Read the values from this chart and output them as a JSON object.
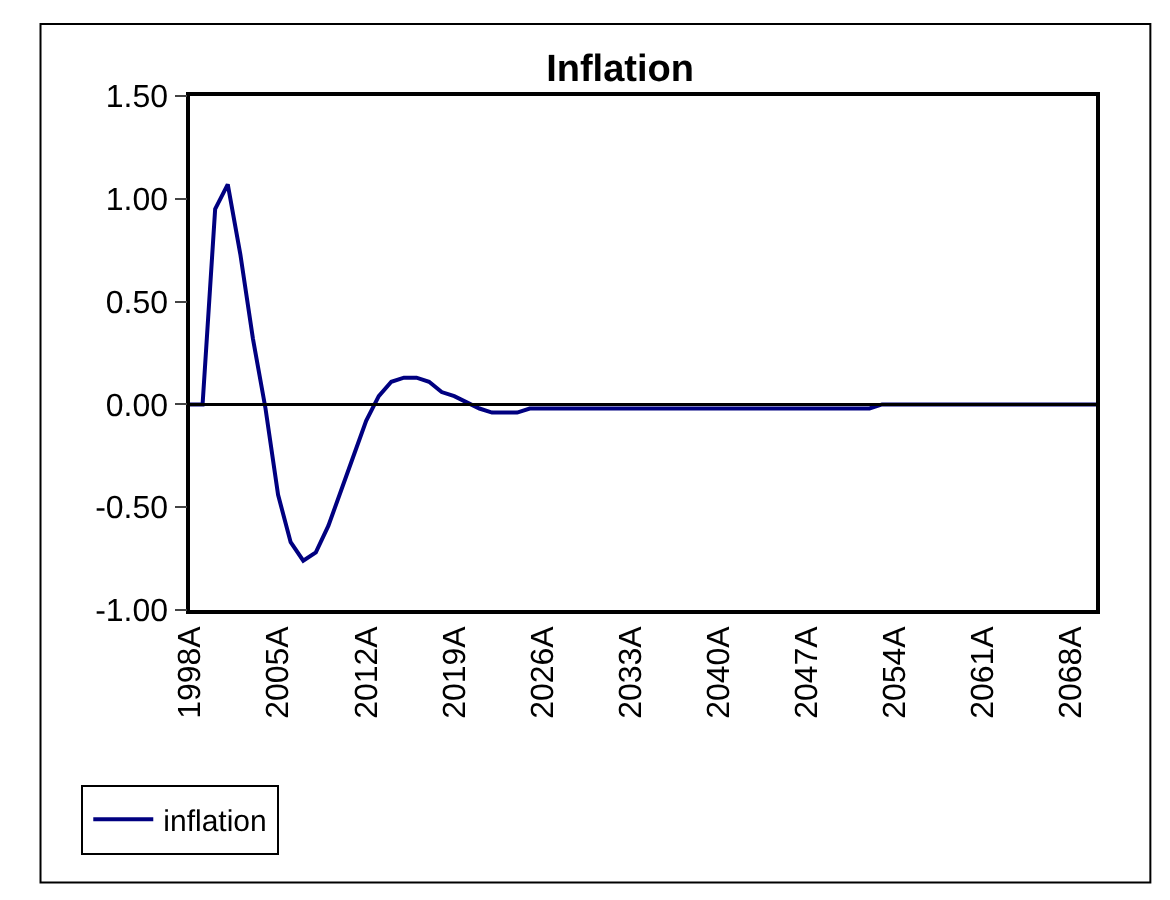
{
  "chart_data": {
    "type": "line",
    "title": "Inflation",
    "categories": [
      "1998A",
      null,
      null,
      null,
      null,
      null,
      null,
      "2005A",
      null,
      null,
      null,
      null,
      null,
      null,
      "2012A",
      null,
      null,
      null,
      null,
      null,
      null,
      "2019A",
      null,
      null,
      null,
      null,
      null,
      null,
      "2026A",
      null,
      null,
      null,
      null,
      null,
      null,
      "2033A",
      null,
      null,
      null,
      null,
      null,
      null,
      "2040A",
      null,
      null,
      null,
      null,
      null,
      null,
      "2047A",
      null,
      null,
      null,
      null,
      null,
      null,
      "2054A",
      null,
      null,
      null,
      null,
      null,
      null,
      "2061A",
      null,
      null,
      null,
      null,
      null,
      null,
      "2068A",
      null,
      null
    ],
    "series": [
      {
        "name": "inflation",
        "color": "#000080",
        "values": [
          0,
          0,
          0.95,
          1.07,
          0.73,
          0.32,
          -0.02,
          -0.44,
          -0.67,
          -0.76,
          -0.72,
          -0.59,
          -0.42,
          -0.25,
          -0.08,
          0.04,
          0.11,
          0.13,
          0.13,
          0.11,
          0.06,
          0.04,
          0.01,
          -0.02,
          -0.04,
          -0.04,
          -0.04,
          -0.02,
          -0.02,
          -0.02,
          -0.02,
          -0.02,
          -0.02,
          -0.02,
          -0.02,
          -0.02,
          -0.02,
          -0.02,
          -0.02,
          -0.02,
          -0.02,
          -0.02,
          -0.02,
          -0.02,
          -0.02,
          -0.02,
          -0.02,
          -0.02,
          -0.02,
          -0.02,
          -0.02,
          -0.02,
          -0.02,
          -0.02,
          -0.02,
          0,
          0,
          0,
          0,
          0,
          0,
          0,
          0,
          0,
          0,
          0,
          0,
          0,
          0,
          0,
          0,
          0,
          0
        ]
      }
    ],
    "ylim": [
      -1,
      1.5
    ],
    "yticks": [
      {
        "value": -1,
        "label": "-1.00"
      },
      {
        "value": -0.5,
        "label": "-0.50"
      },
      {
        "value": 0,
        "label": "0.00"
      },
      {
        "value": 0.5,
        "label": "0.50"
      },
      {
        "value": 1,
        "label": "1.00"
      },
      {
        "value": 1.5,
        "label": "1.50"
      }
    ],
    "ref_lines": [
      {
        "axis": "y",
        "value": 0,
        "color": "#000000"
      }
    ],
    "legend": "bottom left",
    "marker": "none",
    "line_style": "solid"
  }
}
